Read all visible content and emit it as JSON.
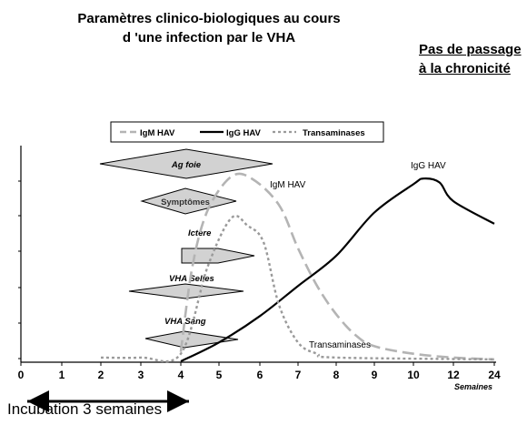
{
  "title_line1": "Paramètres clinico-biologiques au cours",
  "title_line2": "d 'une infection par le VHA",
  "side_note": "Pas de passage à la chronicité",
  "incubation_label": "Incubation 3 semaines",
  "legend": {
    "igm": "IgM HAV",
    "igg": "IgG HAV",
    "transaminases": "Transaminases"
  },
  "curve_labels": {
    "igm": "IgM HAV",
    "igg": "IgG HAV",
    "transaminases": "Transaminases"
  },
  "markers": {
    "ag_foie": "Ag foie",
    "symptomes": "Symptômes",
    "ictere": "Ictère",
    "vha_selles": "VHA Selles",
    "vha_sang": "VHA Sang"
  },
  "x_unit": "Semaines",
  "colors": {
    "igm": "#b4b4b4",
    "igg": "#000000",
    "transaminases": "#9a9a9a",
    "shape_fill": "#d2d2d2",
    "shape_stroke": "#000000"
  },
  "chart_data": {
    "type": "line",
    "x_ticks": [
      "0",
      "1",
      "2",
      "3",
      "4",
      "5",
      "6",
      "7",
      "8",
      "9",
      "10",
      "12",
      "24"
    ],
    "xlabel": "Semaines",
    "series": [
      {
        "name": "IgM HAV",
        "points": [
          [
            4.0,
            0.05
          ],
          [
            4.3,
            0.5
          ],
          [
            4.7,
            0.8
          ],
          [
            5.3,
            0.98
          ],
          [
            5.8,
            0.97
          ],
          [
            6.5,
            0.83
          ],
          [
            7.0,
            0.6
          ],
          [
            7.5,
            0.4
          ],
          [
            8.0,
            0.25
          ],
          [
            8.5,
            0.14
          ],
          [
            9.0,
            0.08
          ],
          [
            10,
            0.04
          ],
          [
            12,
            0.02
          ],
          [
            24,
            0.01
          ]
        ]
      },
      {
        "name": "IgG HAV",
        "points": [
          [
            4.0,
            0.0
          ],
          [
            5.0,
            0.1
          ],
          [
            6.0,
            0.24
          ],
          [
            7.0,
            0.4
          ],
          [
            8.0,
            0.56
          ],
          [
            9.0,
            0.79
          ],
          [
            10,
            0.94
          ],
          [
            10.5,
            0.97
          ],
          [
            11.3,
            0.95
          ],
          [
            12,
            0.85
          ],
          [
            24,
            0.73
          ]
        ]
      },
      {
        "name": "Transaminases",
        "points": [
          [
            2.0,
            0.02
          ],
          [
            3.0,
            0.02
          ],
          [
            4.0,
            0.04
          ],
          [
            4.7,
            0.5
          ],
          [
            5.3,
            0.76
          ],
          [
            5.7,
            0.72
          ],
          [
            6.1,
            0.63
          ],
          [
            6.5,
            0.3
          ],
          [
            7.0,
            0.1
          ],
          [
            7.5,
            0.04
          ],
          [
            8.0,
            0.02
          ],
          [
            24,
            0.01
          ]
        ]
      }
    ]
  }
}
